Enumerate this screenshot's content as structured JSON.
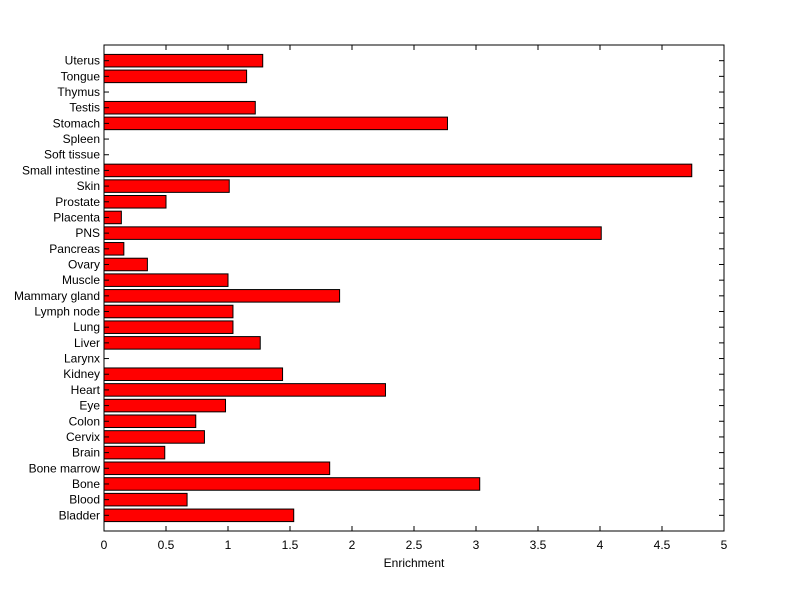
{
  "chart_data": {
    "type": "bar",
    "orientation": "horizontal",
    "categories": [
      "Bladder",
      "Blood",
      "Bone",
      "Bone marrow",
      "Brain",
      "Cervix",
      "Colon",
      "Eye",
      "Heart",
      "Kidney",
      "Larynx",
      "Liver",
      "Lung",
      "Lymph node",
      "Mammary gland",
      "Muscle",
      "Ovary",
      "Pancreas",
      "PNS",
      "Placenta",
      "Prostate",
      "Skin",
      "Small intestine",
      "Soft tissue",
      "Spleen",
      "Stomach",
      "Testis",
      "Thymus",
      "Tongue",
      "Uterus"
    ],
    "values": [
      1.53,
      0.67,
      3.03,
      1.82,
      0.49,
      0.81,
      0.74,
      0.98,
      2.27,
      1.44,
      0,
      1.26,
      1.04,
      1.04,
      1.9,
      1.0,
      0.35,
      0.16,
      4.01,
      0.14,
      0.5,
      1.01,
      4.74,
      0,
      0,
      2.77,
      1.22,
      0,
      1.15,
      1.28
    ],
    "xlabel": "Enrichment",
    "ylabel": "",
    "title": "",
    "xlim": [
      0,
      5
    ],
    "xticks": [
      "0",
      "0.5",
      "1",
      "1.5",
      "2",
      "2.5",
      "3",
      "3.5",
      "4",
      "4.5",
      "5"
    ],
    "bar_color": "#ff0000",
    "grid": false,
    "legend": "none"
  }
}
